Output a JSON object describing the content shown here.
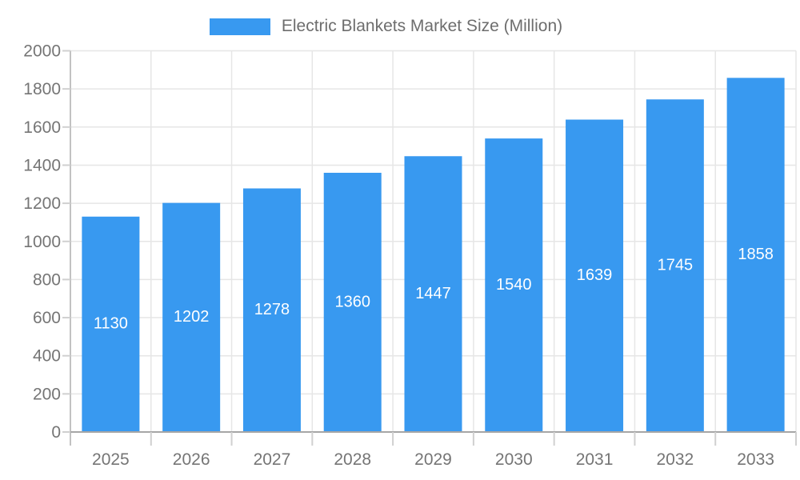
{
  "legend": {
    "label": "Electric Blankets Market Size (Million)"
  },
  "colors": {
    "bar": "#3899F0",
    "bar_label_text": "#ffffff",
    "grid_line": "#e6e6e6",
    "x_axis_line": "#a6a6a6",
    "y_axis_line": "#c2c2c2",
    "tick_line": "#d0d0d0",
    "axis_text": "#757575",
    "legend_text": "#6d6d6d",
    "background": "#ffffff"
  },
  "chart_data": {
    "type": "bar",
    "title": "Electric Blankets Market Size (Million)",
    "categories": [
      "2025",
      "2026",
      "2027",
      "2028",
      "2029",
      "2030",
      "2031",
      "2032",
      "2033"
    ],
    "values": [
      1130,
      1202,
      1278,
      1360,
      1447,
      1540,
      1639,
      1745,
      1858
    ],
    "series": [
      {
        "name": "Electric Blankets Market Size (Million)",
        "values": [
          1130,
          1202,
          1278,
          1360,
          1447,
          1540,
          1639,
          1745,
          1858
        ]
      }
    ],
    "data_labels": [
      "1130",
      "1202",
      "1278",
      "1360",
      "1447",
      "1540",
      "1639",
      "1745",
      "1858"
    ],
    "xlabel": "",
    "ylabel": "",
    "ylim": [
      0,
      2000
    ],
    "ytick_step": 200,
    "ytick_labels": [
      "0",
      "200",
      "400",
      "600",
      "800",
      "1000",
      "1200",
      "1400",
      "1600",
      "1800",
      "2000"
    ],
    "grid": true,
    "legend_position": "top"
  }
}
